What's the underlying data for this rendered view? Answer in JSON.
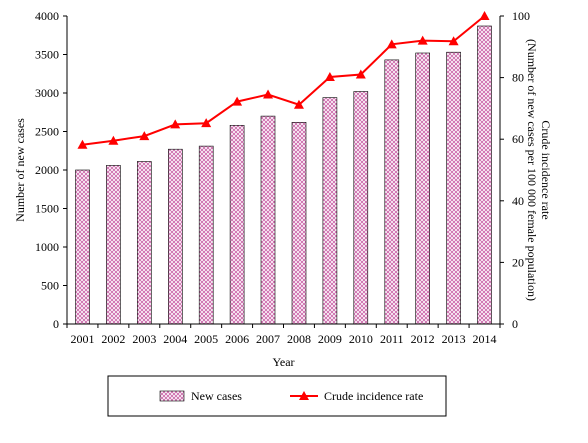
{
  "chart_data": {
    "type": "bar",
    "title": "",
    "categories": [
      "2001",
      "2002",
      "2003",
      "2004",
      "2005",
      "2006",
      "2007",
      "2008",
      "2009",
      "2010",
      "2011",
      "2012",
      "2013",
      "2014"
    ],
    "series": [
      {
        "name": "New cases",
        "type": "bar",
        "axis": "left",
        "color": "#cc66aa",
        "values": [
          2000,
          2060,
          2110,
          2270,
          2310,
          2580,
          2700,
          2620,
          2940,
          3020,
          3430,
          3520,
          3530,
          3870
        ]
      },
      {
        "name": "Crude incidence rate",
        "type": "line",
        "axis": "right",
        "color": "#ff0000",
        "values": [
          58.2,
          59.5,
          61.0,
          64.8,
          65.2,
          72.2,
          74.5,
          71.2,
          80.2,
          81.0,
          90.8,
          92.0,
          91.8,
          100.0
        ]
      }
    ],
    "xlabel": "Year",
    "ylabel": "Number of new cases",
    "ylabel_right": "Crude incidence rate\n(Number of new cases per 100 000 female population)",
    "ylim": [
      0,
      4000
    ],
    "ylim_right": [
      0,
      100
    ],
    "yticks": [
      "0",
      "500",
      "1000",
      "1500",
      "2000",
      "2500",
      "3000",
      "3500",
      "4000"
    ],
    "yticks_right": [
      "0",
      "20",
      "40",
      "60",
      "80",
      "100"
    ],
    "grid": false,
    "legend": "bottom"
  }
}
